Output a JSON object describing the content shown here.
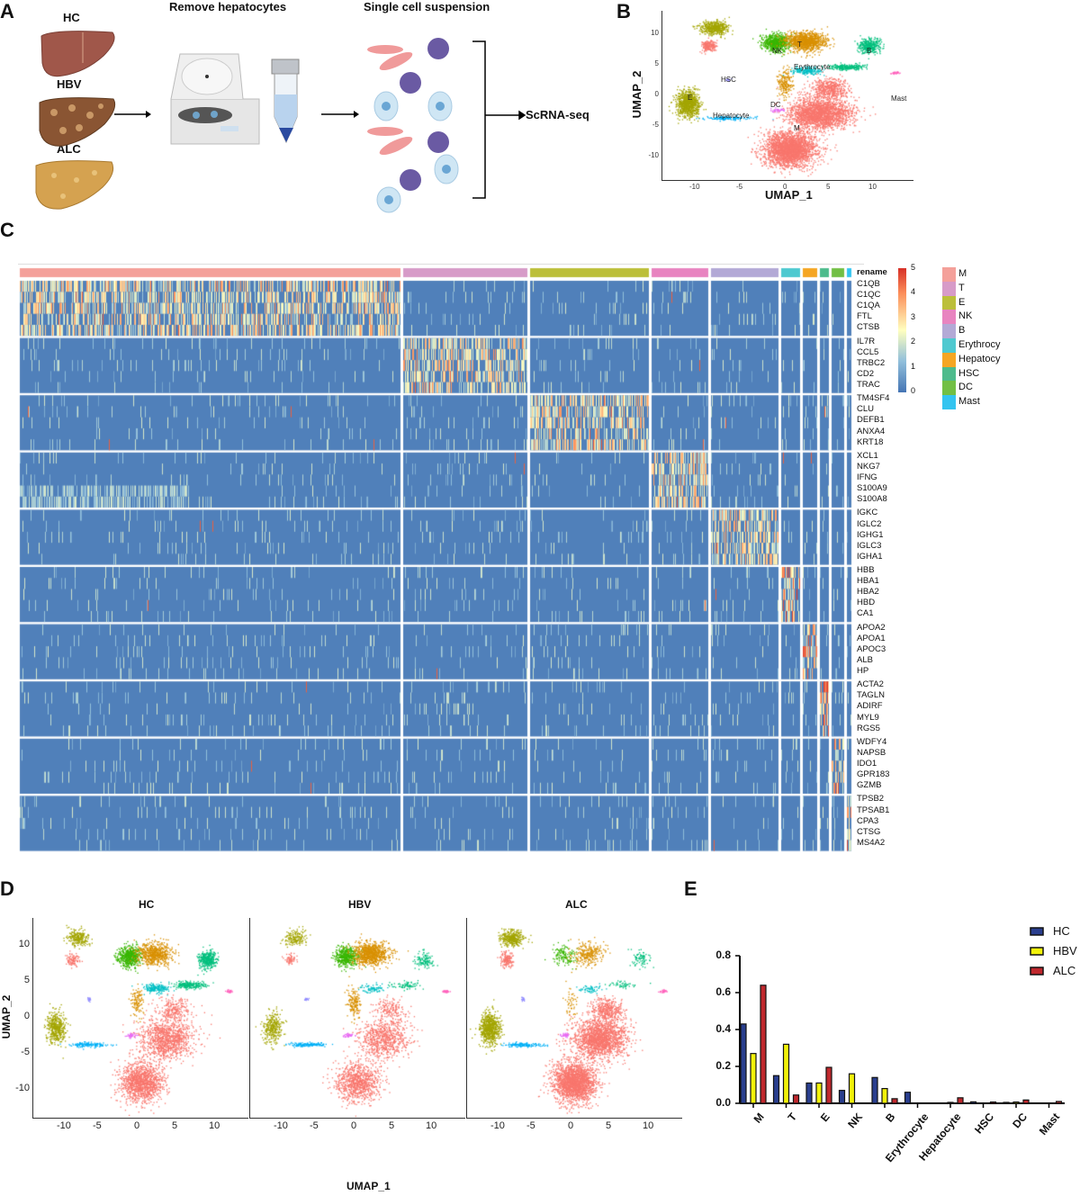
{
  "panels": {
    "A": {
      "label": "A",
      "samples": [
        "HC",
        "HBV",
        "ALC"
      ],
      "step1": "Remove hepatocytes",
      "step2": "Single cell suspension",
      "output": "ScRNA-seq"
    },
    "B": {
      "label": "B",
      "xlabel": "UMAP_1",
      "ylabel": "UMAP_2",
      "xticks": [
        "-10",
        "-5",
        "0",
        "5",
        "10"
      ],
      "yticks": [
        "10",
        "5",
        "0",
        "-5",
        "-10"
      ],
      "cluster_labels": [
        "T",
        "NK",
        "B",
        "Erythrocyte",
        "HSC",
        "E",
        "Hepatocyte",
        "DC",
        "M",
        "Mast"
      ]
    },
    "C": {
      "label": "C"
    },
    "D": {
      "label": "D",
      "titles": [
        "HC",
        "HBV",
        "ALC"
      ],
      "xlabel": "UMAP_1",
      "ylabel": "UMAP_2",
      "xticks": [
        "-10",
        "-5",
        "0",
        "5",
        "10"
      ],
      "yticks": [
        "10",
        "5",
        "0",
        "-5",
        "-10"
      ]
    },
    "E": {
      "label": "E"
    }
  },
  "colors": {
    "heat_legend": [
      "#f4a09a",
      "#d79bc8",
      "#bcbf3a",
      "#e884c0",
      "#b3a9d6",
      "#4ec9d0",
      "#f5a623",
      "#4dbb8c",
      "#72bf44",
      "#33c4f0"
    ],
    "umap": {
      "M": "#F8766D",
      "T": "#D89000",
      "E": "#A3A500",
      "NK": "#39B600",
      "B": "#00BF7D",
      "Erythrocyte": "#00BFC4",
      "Hepatocyte": "#00B0F6",
      "HSC": "#9590FF",
      "DC": "#E76BF3",
      "Mast": "#FF62BC"
    },
    "bars": {
      "HC": "#2a3f8f",
      "HBV": "#f2f20a",
      "ALC": "#c0282d"
    }
  },
  "chart_data": [
    {
      "type": "bar",
      "categories": [
        "M",
        "T",
        "E",
        "NK",
        "B",
        "Erythrocyte",
        "Hepatocyte",
        "HSC",
        "DC",
        "Mast"
      ],
      "series": [
        {
          "name": "HC",
          "values": [
            0.43,
            0.15,
            0.11,
            0.07,
            0.14,
            0.06,
            0.0,
            0.008,
            0.005,
            0.0
          ]
        },
        {
          "name": "HBV",
          "values": [
            0.27,
            0.32,
            0.11,
            0.16,
            0.08,
            0.0,
            0.005,
            0.0,
            0.007,
            0.0
          ]
        },
        {
          "name": "ALC",
          "values": [
            0.64,
            0.045,
            0.195,
            0.0,
            0.025,
            0.0,
            0.03,
            0.007,
            0.018,
            0.01
          ]
        }
      ],
      "yticks": [
        "0.0",
        "0.2",
        "0.4",
        "0.6",
        "0.8"
      ],
      "ylim": [
        0,
        0.8
      ],
      "legend": "top-right"
    },
    {
      "type": "heatmap",
      "annotation_label": "rename",
      "clusters": [
        "M",
        "T",
        "E",
        "NK",
        "B",
        "Erythrocy",
        "Hepatocy",
        "HSC",
        "DC",
        "Mast"
      ],
      "gene_blocks": [
        [
          "C1QB",
          "C1QC",
          "C1QA",
          "FTL",
          "CTSB"
        ],
        [
          "IL7R",
          "CCL5",
          "TRBC2",
          "CD2",
          "TRAC"
        ],
        [
          "TM4SF4",
          "CLU",
          "DEFB1",
          "ANXA4",
          "KRT18"
        ],
        [
          "XCL1",
          "NKG7",
          "IFNG",
          "S100A9",
          "S100A8"
        ],
        [
          "IGKC",
          "IGLC2",
          "IGHG1",
          "IGLC3",
          "IGHA1"
        ],
        [
          "HBB",
          "HBA1",
          "HBA2",
          "HBD",
          "CA1"
        ],
        [
          "APOA2",
          "APOA1",
          "APOC3",
          "ALB",
          "HP"
        ],
        [
          "ACTA2",
          "TAGLN",
          "ADIRF",
          "MYL9",
          "RGS5"
        ],
        [
          "WDFY4",
          "NAPSB",
          "IDO1",
          "GPR183",
          "GZMB"
        ],
        [
          "TPSB2",
          "TPSAB1",
          "CPA3",
          "CTSG",
          "MS4A2"
        ]
      ],
      "colorbar_ticks": [
        "5",
        "4",
        "3",
        "2",
        "1",
        "0"
      ],
      "colorbar_range": [
        0,
        5
      ]
    }
  ]
}
